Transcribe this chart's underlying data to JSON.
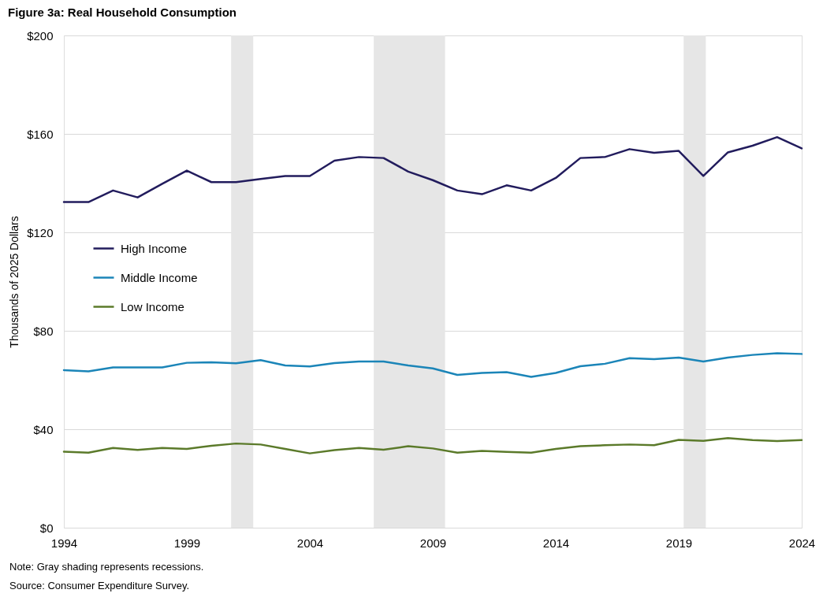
{
  "chart_data": {
    "type": "line",
    "title": "Figure 3a: Real Household  Consumption",
    "ylabel": "Thousands of 2025 Dollars",
    "annotations": [
      "Note: Gray shading represents recessions.",
      "Source: Consumer Expenditure Survey."
    ],
    "x": [
      1994,
      1995,
      1996,
      1997,
      1998,
      1999,
      2000,
      2001,
      2002,
      2003,
      2004,
      2005,
      2006,
      2007,
      2008,
      2009,
      2010,
      2011,
      2012,
      2013,
      2014,
      2015,
      2016,
      2017,
      2018,
      2019,
      2020,
      2021,
      2022,
      2023,
      2024
    ],
    "series": [
      {
        "name": "High Income",
        "color": "#221c5d",
        "values": [
          132.3,
          132.3,
          137.0,
          134.2,
          139.7,
          145.1,
          140.4,
          140.4,
          141.7,
          142.9,
          142.9,
          149.1,
          150.6,
          150.2,
          144.7,
          141.2,
          137.0,
          135.5,
          139.1,
          137.0,
          142.1,
          150.2,
          150.6,
          153.8,
          152.3,
          153.1,
          142.9,
          152.5,
          155.2,
          158.7,
          154.1
        ]
      },
      {
        "name": "Middle Income",
        "color": "#1b85b8",
        "values": [
          64.0,
          63.5,
          65.1,
          65.1,
          65.1,
          67.0,
          67.2,
          66.8,
          68.1,
          65.9,
          65.5,
          66.9,
          67.5,
          67.5,
          65.9,
          64.7,
          62.1,
          62.9,
          63.2,
          61.3,
          62.9,
          65.6,
          66.6,
          68.9,
          68.5,
          69.1,
          67.5,
          69.1,
          70.2,
          70.9,
          70.6
        ]
      },
      {
        "name": "Low Income",
        "color": "#5b7a2a",
        "values": [
          30.9,
          30.5,
          32.4,
          31.6,
          32.4,
          32.0,
          33.3,
          34.2,
          33.8,
          32.0,
          30.2,
          31.5,
          32.4,
          31.7,
          33.1,
          32.2,
          30.5,
          31.2,
          30.8,
          30.5,
          32.0,
          33.1,
          33.5,
          33.8,
          33.5,
          35.7,
          35.3,
          36.4,
          35.6,
          35.2,
          35.6
        ]
      }
    ],
    "xlim": [
      1994,
      2024
    ],
    "xticks": [
      1994,
      1999,
      2004,
      2009,
      2014,
      2019,
      2024
    ],
    "ylim": [
      0,
      200
    ],
    "yticks": [
      {
        "value": 0,
        "label": "$0"
      },
      {
        "value": 40,
        "label": "$40"
      },
      {
        "value": 80,
        "label": "$80"
      },
      {
        "value": 120,
        "label": "$120"
      },
      {
        "value": 160,
        "label": "$160"
      },
      {
        "value": 200,
        "label": "$200"
      }
    ],
    "bands": [
      {
        "axis": "x",
        "from": 2000.8,
        "to": 2001.7,
        "color": "#e6e6e6"
      },
      {
        "axis": "x",
        "from": 2006.6,
        "to": 2009.5,
        "color": "#e6e6e6"
      },
      {
        "axis": "x",
        "from": 2019.2,
        "to": 2020.1,
        "color": "#e6e6e6"
      }
    ],
    "grid": "y",
    "legend": "left"
  }
}
